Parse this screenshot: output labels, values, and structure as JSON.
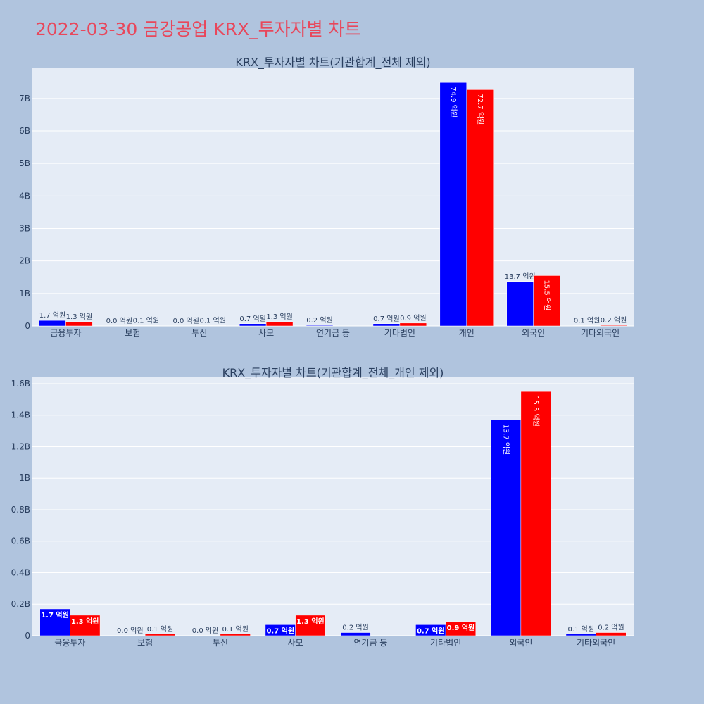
{
  "title": "2022-03-30 금강공업 KRX_투자자별 차트",
  "colors": {
    "buy": "#0000ff",
    "sell": "#ff0000",
    "plot_bg": "#e5ecf6",
    "page_bg": "#b0c4de",
    "title": "#e8475b"
  },
  "chart_data": [
    {
      "type": "bar",
      "title": "KRX_투자자별 차트(기관합계_전체 제외)",
      "categories": [
        "금융투자",
        "보험",
        "투신",
        "사모",
        "연기금 등",
        "기타법인",
        "개인",
        "외국인",
        "기타외국인"
      ],
      "series": [
        {
          "values": [
            170000000,
            0,
            0,
            70000000,
            20000000,
            70000000,
            7490000000,
            1370000000,
            10000000
          ],
          "labels": [
            "1.7 억원",
            "0.0 억원",
            "0.0 억원",
            "0.7 억원",
            "0.2 억원",
            "0.7 억원",
            "74.9 억원",
            "13.7 억원",
            "0.1 억원"
          ]
        },
        {
          "values": [
            130000000,
            10000000,
            10000000,
            130000000,
            null,
            90000000,
            7270000000,
            1550000000,
            20000000
          ],
          "labels": [
            "1.3 억원",
            "0.1 억원",
            "0.1 억원",
            "1.3 억원",
            "",
            "0.9 억원",
            "72.7 억원",
            "15.5 억원",
            "0.2 억원"
          ]
        }
      ],
      "ylim": [
        0,
        7950000000
      ],
      "yticks": [
        0,
        1000000000,
        2000000000,
        3000000000,
        4000000000,
        5000000000,
        6000000000,
        7000000000
      ],
      "ytick_labels": [
        "0",
        "1B",
        "2B",
        "3B",
        "4B",
        "5B",
        "6B",
        "7B"
      ],
      "grid": true
    },
    {
      "type": "bar",
      "title": "KRX_투자자별 차트(기관합계_전체_개인 제외)",
      "categories": [
        "금융투자",
        "보험",
        "투신",
        "사모",
        "연기금 등",
        "기타법인",
        "외국인",
        "기타외국인"
      ],
      "series": [
        {
          "values": [
            170000000,
            0,
            0,
            70000000,
            20000000,
            70000000,
            1370000000,
            10000000
          ],
          "labels": [
            "1.7 억원",
            "0.0 억원",
            "0.0 억원",
            "0.7 억원",
            "0.2 억원",
            "0.7 억원",
            "13.7 억원",
            "0.1 억원"
          ]
        },
        {
          "values": [
            130000000,
            10000000,
            10000000,
            130000000,
            null,
            90000000,
            1550000000,
            20000000
          ],
          "labels": [
            "1.3 억원",
            "0.1 억원",
            "0.1 억원",
            "1.3 억원",
            "",
            "0.9 억원",
            "15.5 억원",
            "0.2 억원"
          ]
        }
      ],
      "ylim": [
        0,
        1640000000
      ],
      "yticks": [
        0,
        200000000,
        400000000,
        600000000,
        800000000,
        1000000000,
        1200000000,
        1400000000,
        1600000000
      ],
      "ytick_labels": [
        "0",
        "0.2B",
        "0.4B",
        "0.6B",
        "0.8B",
        "1B",
        "1.2B",
        "1.4B",
        "1.6B"
      ],
      "grid": true
    }
  ]
}
